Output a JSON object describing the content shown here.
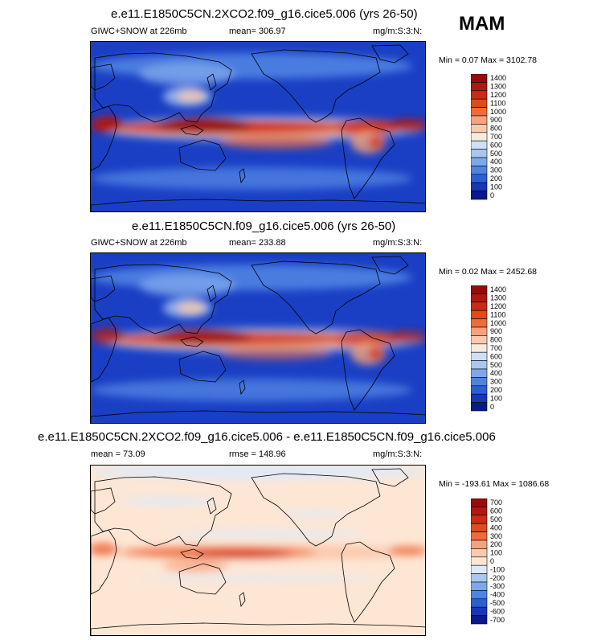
{
  "season": "MAM",
  "panels": [
    {
      "title": "e.e11.E1850C5CN.2XCO2.f09_g16.cice5.006 (yrs 26-50)",
      "left_label": "GIWC+SNOW at 226mb",
      "mid_label": "mean= 306.97",
      "units": "mg/m:S:3:N:",
      "minmax": "Min =   0.07 Max = 3102.78",
      "levels": [
        "1400",
        "1300",
        "1200",
        "1100",
        "1000",
        "900",
        "800",
        "700",
        "600",
        "500",
        "400",
        "300",
        "200",
        "100",
        "0"
      ],
      "colors": [
        "#9b0a0a",
        "#b2170f",
        "#cc2a14",
        "#e04a1c",
        "#ef6b3c",
        "#f6a27c",
        "#fbc9ae",
        "#f7eadf",
        "#cfe0f6",
        "#a9c7f1",
        "#7ea8ec",
        "#4f83e3",
        "#2c5fd6",
        "#1537b8",
        "#0a1a8c"
      ]
    },
    {
      "title": "e.e11.E1850C5CN.f09_g16.cice5.006 (yrs 26-50)",
      "left_label": "GIWC+SNOW at 226mb",
      "mid_label": "mean= 233.88",
      "units": "mg/m:S:3:N:",
      "minmax": "Min =   0.02 Max = 2452.68",
      "levels": [
        "1400",
        "1300",
        "1200",
        "1100",
        "1000",
        "900",
        "800",
        "700",
        "600",
        "500",
        "400",
        "300",
        "200",
        "100",
        "0"
      ],
      "colors": [
        "#9b0a0a",
        "#b2170f",
        "#cc2a14",
        "#e04a1c",
        "#ef6b3c",
        "#f6a27c",
        "#fbc9ae",
        "#f7eadf",
        "#cfe0f6",
        "#a9c7f1",
        "#7ea8ec",
        "#4f83e3",
        "#2c5fd6",
        "#1537b8",
        "#0a1a8c"
      ]
    },
    {
      "title": "e.e11.E1850C5CN.2XCO2.f09_g16.cice5.006 - e.e11.E1850C5CN.f09_g16.cice5.006",
      "left_label": "mean =  73.09",
      "mid_label": "rmse = 148.96",
      "units": "mg/m:S:3:N:",
      "minmax": "Min = -193.61 Max = 1086.68",
      "levels": [
        "700",
        "600",
        "500",
        "400",
        "300",
        "200",
        "100",
        "0",
        "-100",
        "-200",
        "-300",
        "-400",
        "-500",
        "-600",
        "-700"
      ],
      "colors": [
        "#9b0a0a",
        "#b2170f",
        "#cc2a14",
        "#e04a1c",
        "#ef6b3c",
        "#f6a27c",
        "#fbc9ae",
        "#fde6d4",
        "#dfeaf8",
        "#a9c7f1",
        "#7ea8ec",
        "#4f83e3",
        "#2c5fd6",
        "#1537b8",
        "#0a1a8c"
      ]
    }
  ],
  "chart_data": [
    {
      "type": "heatmap",
      "title": "e.e11.E1850C5CN.2XCO2.f09_g16.cice5.006 (yrs 26-50)",
      "variable": "GIWC+SNOW at 226mb",
      "units": "mg/m:S:3:N:",
      "mean": 306.97,
      "min": 0.07,
      "max": 3102.78,
      "contour_levels": [
        0,
        100,
        200,
        300,
        400,
        500,
        600,
        700,
        800,
        900,
        1000,
        1100,
        1200,
        1300,
        1400
      ]
    },
    {
      "type": "heatmap",
      "title": "e.e11.E1850C5CN.f09_g16.cice5.006 (yrs 26-50)",
      "variable": "GIWC+SNOW at 226mb",
      "units": "mg/m:S:3:N:",
      "mean": 233.88,
      "min": 0.02,
      "max": 2452.68,
      "contour_levels": [
        0,
        100,
        200,
        300,
        400,
        500,
        600,
        700,
        800,
        900,
        1000,
        1100,
        1200,
        1300,
        1400
      ]
    },
    {
      "type": "heatmap",
      "title": "e.e11.E1850C5CN.2XCO2.f09_g16.cice5.006 - e.e11.E1850C5CN.f09_g16.cice5.006",
      "units": "mg/m:S:3:N:",
      "mean": 73.09,
      "rmse": 148.96,
      "min": -193.61,
      "max": 1086.68,
      "contour_levels": [
        -700,
        -600,
        -500,
        -400,
        -300,
        -200,
        -100,
        0,
        100,
        200,
        300,
        400,
        500,
        600,
        700
      ]
    }
  ]
}
